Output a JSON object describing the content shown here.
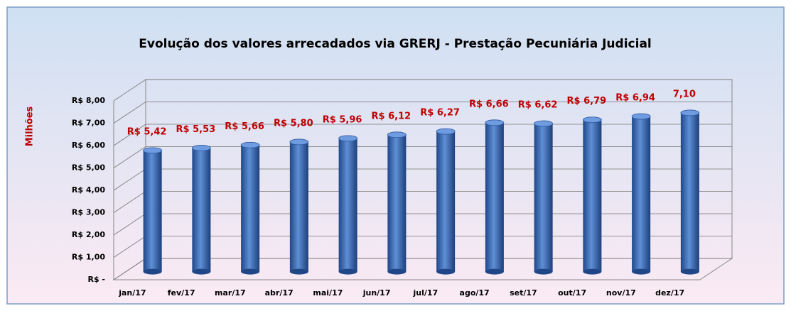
{
  "chart_data": {
    "type": "bar",
    "title": "Evolução dos valores arrecadados via GRERJ - Prestação Pecuniária Judicial",
    "y_label": "Milhões",
    "categories": [
      "jan/17",
      "fev/17",
      "mar/17",
      "abr/17",
      "mai/17",
      "jun/17",
      "jul/17",
      "ago/17",
      "set/17",
      "out/17",
      "nov/17",
      "dez/17"
    ],
    "values": [
      5.42,
      5.53,
      5.66,
      5.8,
      5.96,
      6.12,
      6.27,
      6.66,
      6.62,
      6.79,
      6.94,
      7.1
    ],
    "value_labels": [
      "R$ 5,42",
      "R$ 5,53",
      "R$ 5,66",
      "R$ 5,80",
      "R$ 5,96",
      "R$ 6,12",
      "R$ 6,27",
      "R$ 6,66",
      "R$ 6,62",
      "R$ 6,79",
      "R$ 6,94",
      "7,10"
    ],
    "color": "#3d6db3",
    "label_color": "#c00000",
    "ylim": [
      0,
      8
    ],
    "yticks": [
      {
        "value": 0,
        "label": "R$ -"
      },
      {
        "value": 1,
        "label": "R$ 1,00"
      },
      {
        "value": 2,
        "label": "R$ 2,00"
      },
      {
        "value": 3,
        "label": "R$ 3,00"
      },
      {
        "value": 4,
        "label": "R$ 4,00"
      },
      {
        "value": 5,
        "label": "R$ 5,00"
      },
      {
        "value": 6,
        "label": "R$ 6,00"
      },
      {
        "value": 7,
        "label": "R$ 7,00"
      },
      {
        "value": 8,
        "label": "R$ 8,00"
      }
    ],
    "grid": true
  }
}
